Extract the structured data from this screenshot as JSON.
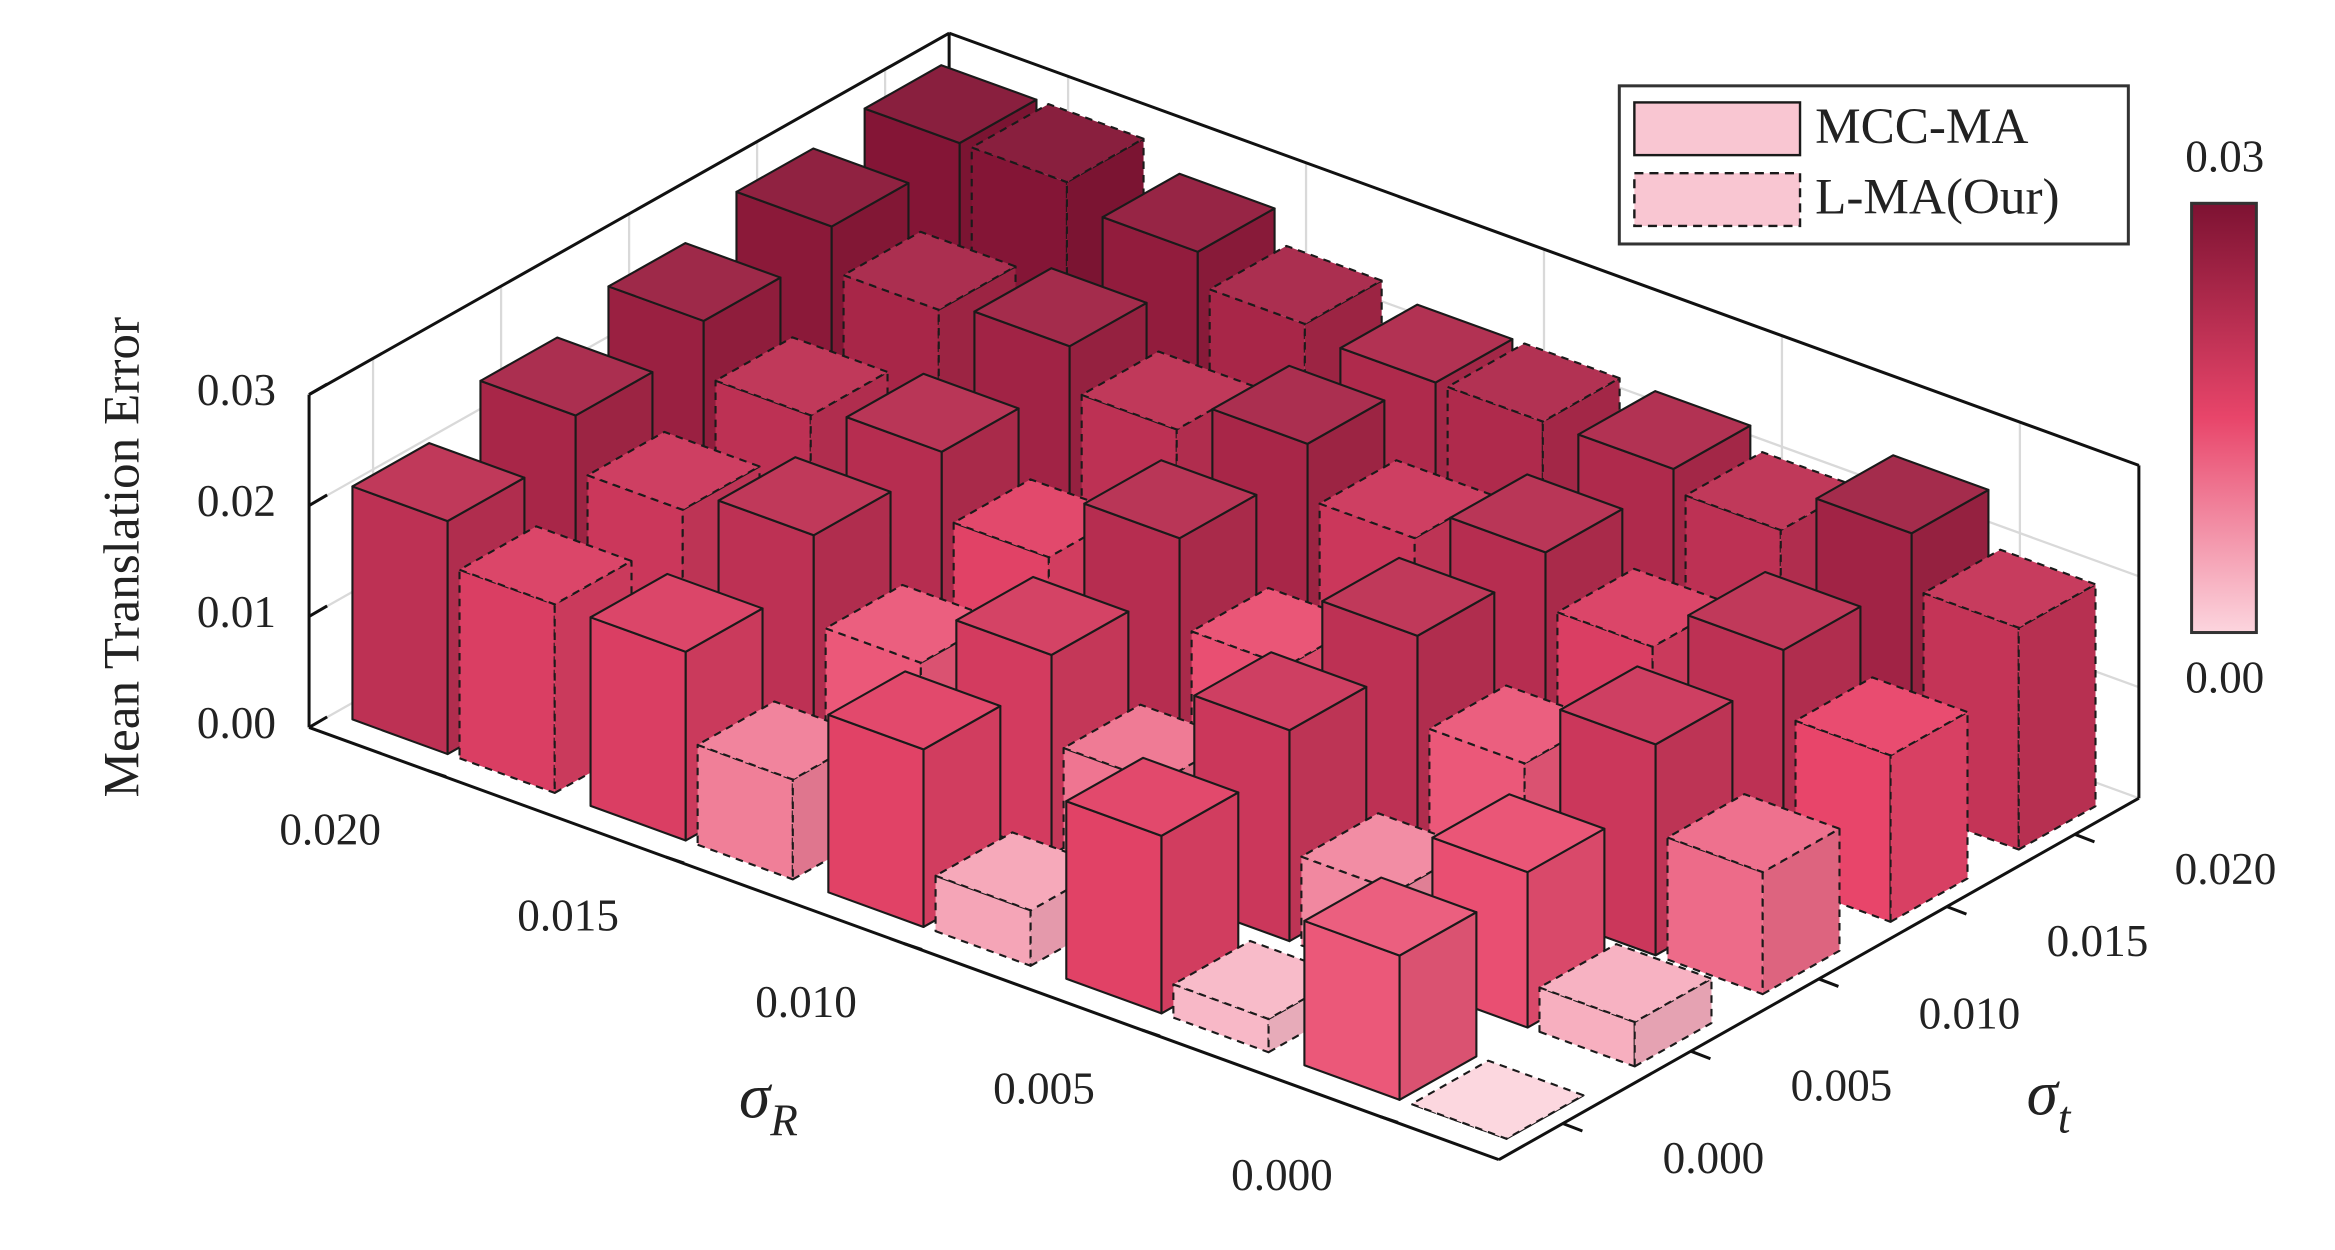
{
  "chart_data": {
    "type": "bar3d",
    "z_label": "Mean Translation Error",
    "x_label": {
      "symbol": "σ",
      "subscript": "R"
    },
    "y_label": {
      "symbol": "σ",
      "subscript": "t"
    },
    "x_categories": [
      "0.000",
      "0.005",
      "0.010",
      "0.015",
      "0.020"
    ],
    "y_categories": [
      "0.000",
      "0.005",
      "0.010",
      "0.015",
      "0.020"
    ],
    "zlim": [
      0,
      0.03
    ],
    "zticks": [
      {
        "value": 0,
        "label": "0.00"
      },
      0.01,
      0.02,
      0.03
    ],
    "grid": true,
    "legend_loc": "upper right",
    "colormap": [
      "#fcd5de",
      "#e8456a",
      "#7d1232"
    ],
    "colorbar": {
      "lim": [
        0,
        0.03
      ],
      "ticks": [
        {
          "value": 0,
          "label": "0.00"
        },
        0.03
      ]
    },
    "series": [
      {
        "name": "MCC-MA",
        "color": "#f9c6d2",
        "linestyle": "solid",
        "values": [
          [
            0.013,
            0.016,
            0.016,
            0.017,
            0.021
          ],
          [
            0.014,
            0.019,
            0.018,
            0.021,
            0.024
          ],
          [
            0.019,
            0.021,
            0.022,
            0.022,
            0.026
          ],
          [
            0.021,
            0.022,
            0.024,
            0.025,
            0.028
          ],
          [
            0.025,
            0.023,
            0.023,
            0.027,
            0.029
          ]
        ]
      },
      {
        "name": "L-MA(Our)",
        "color": "#f9c6d2",
        "linestyle": "dashed",
        "values": [
          [
            0.0,
            0.003,
            0.005,
            0.009,
            0.017
          ],
          [
            0.004,
            0.008,
            0.01,
            0.013,
            0.019
          ],
          [
            0.011,
            0.013,
            0.014,
            0.016,
            0.021
          ],
          [
            0.015,
            0.017,
            0.019,
            0.021,
            0.024
          ],
          [
            0.02,
            0.021,
            0.023,
            0.024,
            0.029
          ]
        ]
      }
    ]
  }
}
